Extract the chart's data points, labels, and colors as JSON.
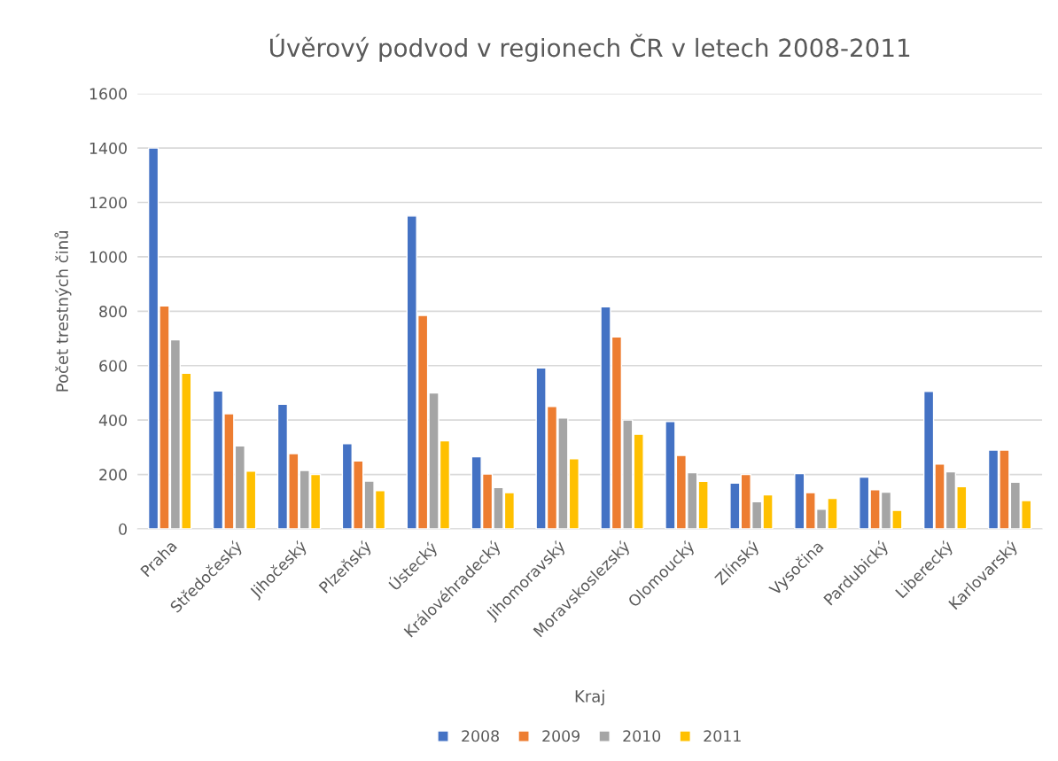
{
  "chart_data": {
    "type": "bar",
    "title": "Úvěrový podvod v regionech ČR v letech 2008-2011",
    "xlabel": "Kraj",
    "ylabel": "Počet trestných činů",
    "categories": [
      "Praha",
      "Středočeský",
      "Jihočeský",
      "Plzeňský",
      "Ústecký",
      "Královéhradecký",
      "Jihomoravský",
      "Moravskoslezský",
      "Olomoucký",
      "Zlínský",
      "Vysočina",
      "Pardubický",
      "Liberecký",
      "Karlovarský"
    ],
    "series": [
      {
        "name": "2008",
        "color": "#4472c4",
        "values": [
          1400,
          507,
          458,
          313,
          1150,
          265,
          592,
          816,
          395,
          168,
          203,
          190,
          505,
          290
        ]
      },
      {
        "name": "2009",
        "color": "#ed7d31",
        "values": [
          820,
          423,
          277,
          250,
          785,
          202,
          450,
          706,
          270,
          200,
          133,
          144,
          238,
          290
        ]
      },
      {
        "name": "2010",
        "color": "#a5a5a5",
        "values": [
          695,
          305,
          215,
          176,
          500,
          152,
          408,
          400,
          207,
          100,
          72,
          135,
          210,
          172
        ]
      },
      {
        "name": "2011",
        "color": "#ffc000",
        "values": [
          572,
          212,
          200,
          141,
          324,
          133,
          258,
          348,
          175,
          125,
          112,
          68,
          155,
          104
        ]
      }
    ],
    "ylim": [
      0,
      1600
    ],
    "yticks": [
      0,
      200,
      400,
      600,
      800,
      1000,
      1200,
      1400,
      1600
    ],
    "grid": "y",
    "legend": "bottom"
  }
}
